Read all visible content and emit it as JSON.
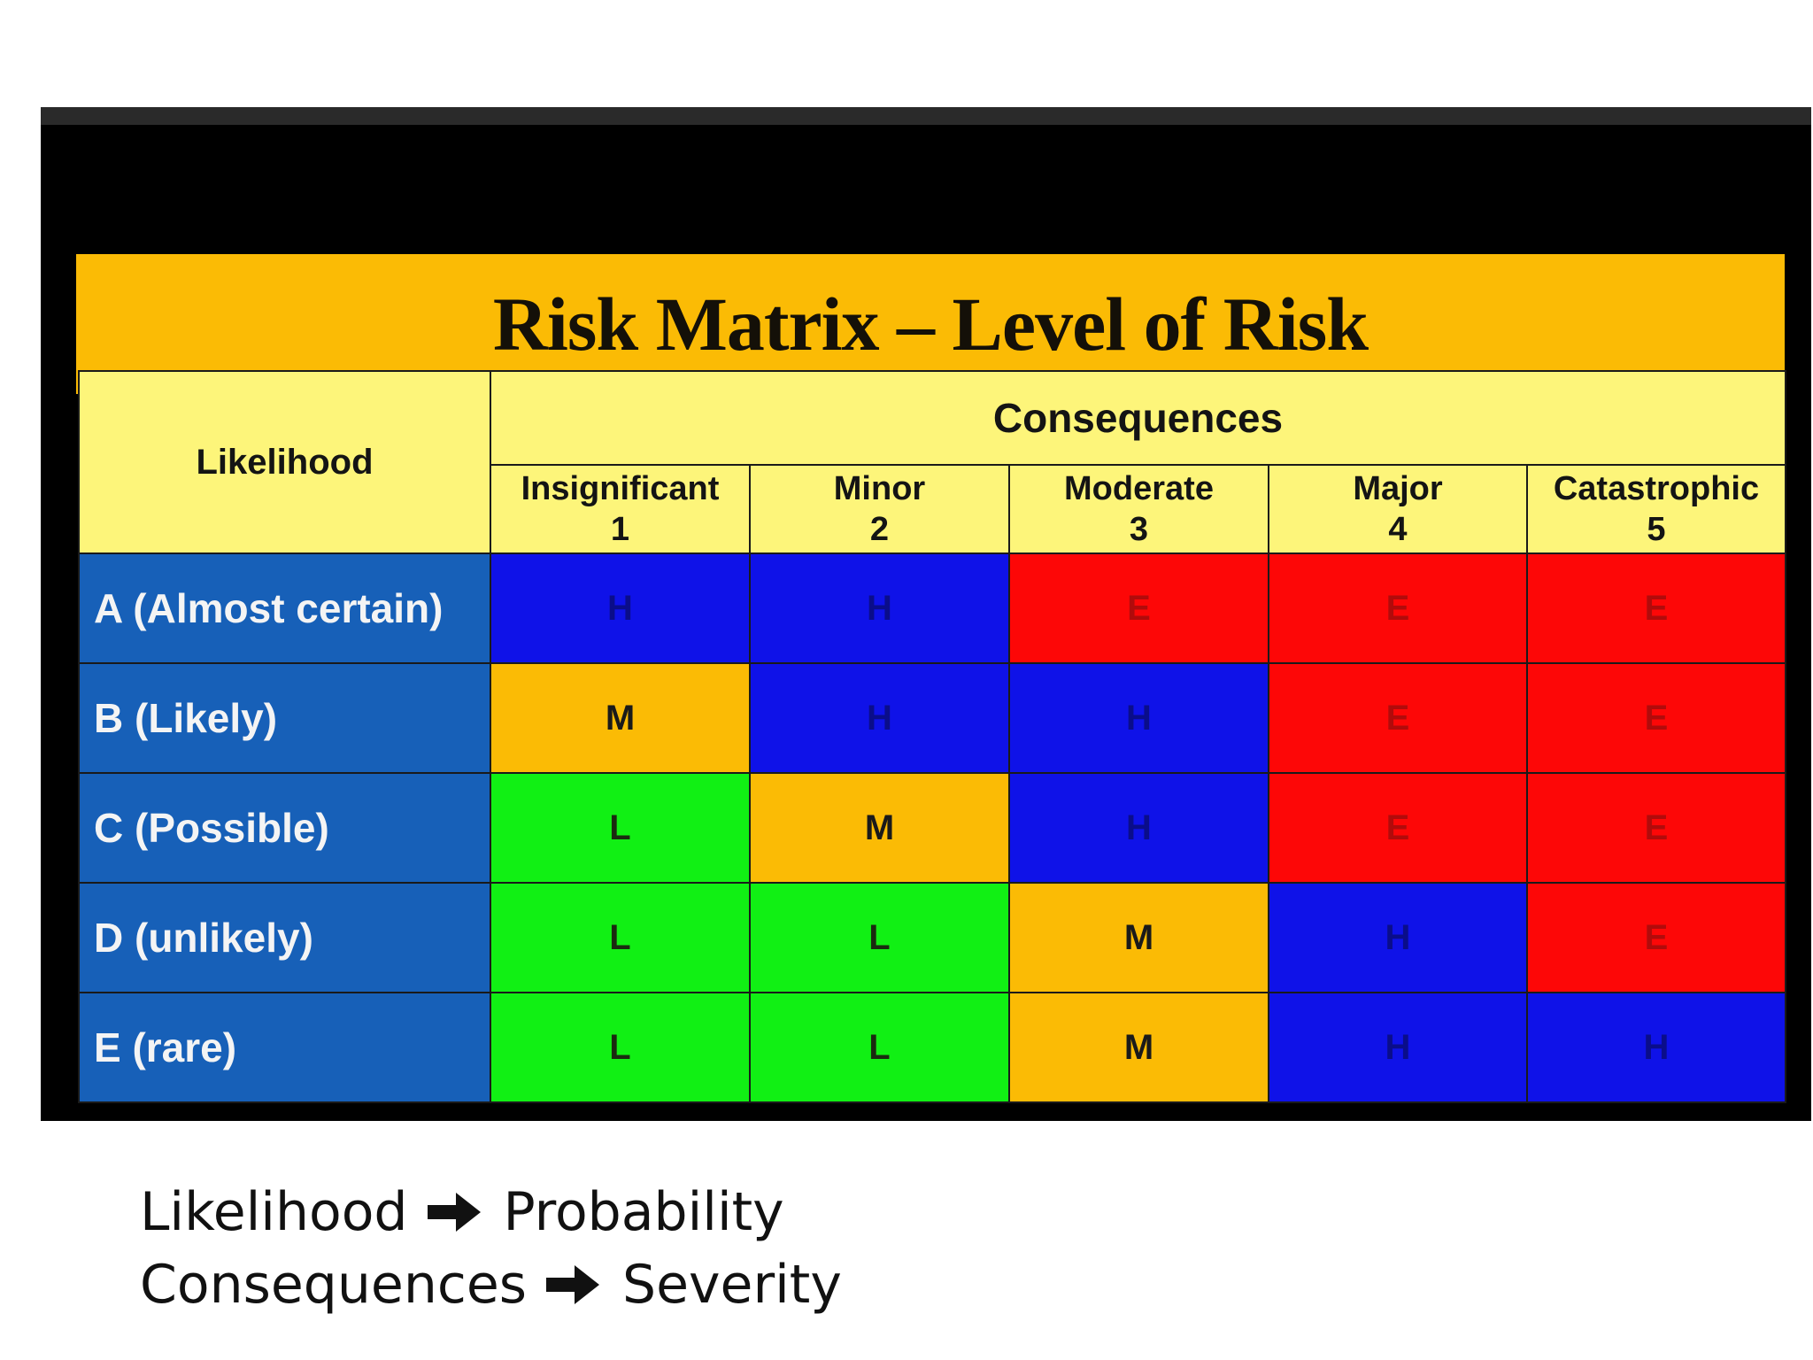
{
  "title": "Risk Matrix – Level of Risk",
  "header": {
    "likelihood": "Likelihood",
    "consequences": "Consequences",
    "columns": [
      {
        "name": "Insignificant",
        "num": "1"
      },
      {
        "name": "Minor",
        "num": "2"
      },
      {
        "name": "Moderate",
        "num": "3"
      },
      {
        "name": "Major",
        "num": "4"
      },
      {
        "name": "Catastrophic",
        "num": "5"
      }
    ]
  },
  "rows": [
    {
      "label": "A (Almost certain)",
      "cells": [
        "H",
        "H",
        "E",
        "E",
        "E"
      ]
    },
    {
      "label": "B (Likely)",
      "cells": [
        "M",
        "H",
        "H",
        "E",
        "E"
      ]
    },
    {
      "label": "C (Possible)",
      "cells": [
        "L",
        "M",
        "H",
        "E",
        "E"
      ]
    },
    {
      "label": "D (unlikely)",
      "cells": [
        "L",
        "L",
        "M",
        "H",
        "E"
      ]
    },
    {
      "label": "E (rare)",
      "cells": [
        "L",
        "L",
        "M",
        "H",
        "H"
      ]
    }
  ],
  "level_colors": {
    "L": "#11f014",
    "M": "#fbbb05",
    "H": "#0f12e8",
    "E": "#fd0707"
  },
  "caption": {
    "line1_left": "Likelihood",
    "line1_right": "Probability",
    "line2_left": "Consequences",
    "line2_right": "Severity",
    "arrow_icon": "bold-right-arrow-icon"
  }
}
